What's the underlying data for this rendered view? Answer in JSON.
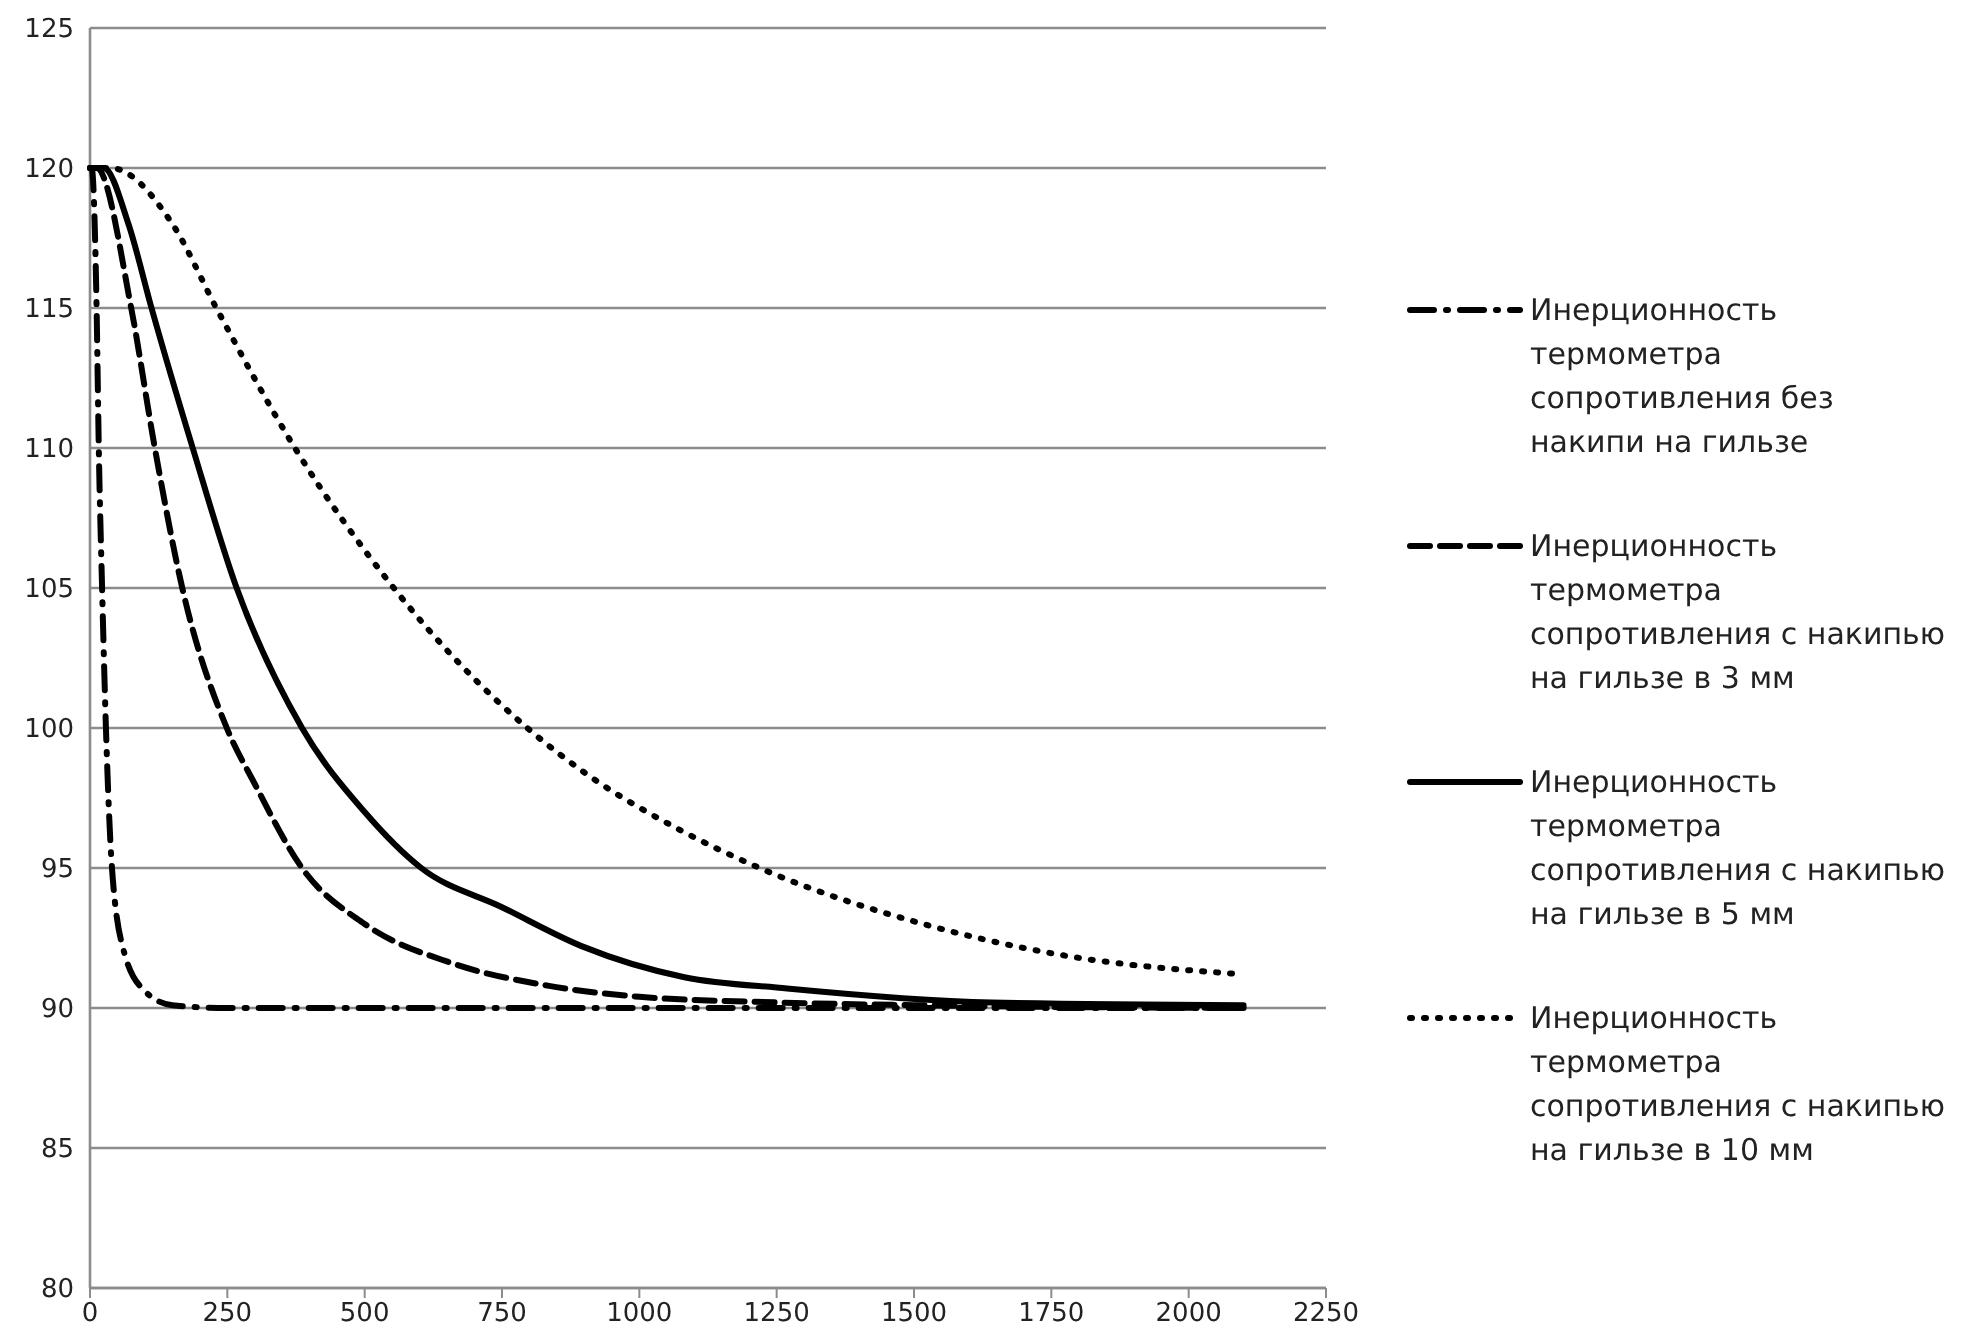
{
  "chart_data": {
    "type": "line",
    "xlim": [
      0,
      2250
    ],
    "xticks": [
      0,
      250,
      500,
      750,
      1000,
      1250,
      1500,
      1750,
      2000,
      2250
    ],
    "ylim": [
      80,
      125
    ],
    "yticks": [
      80,
      85,
      90,
      95,
      100,
      105,
      110,
      115,
      120,
      125
    ],
    "grid": "y",
    "legend": "right",
    "series": [
      {
        "name": "Инерционность термометра сопротивления без накипи на гильзе",
        "color": "#000000",
        "line_style": "dashdot",
        "x": [
          0,
          3,
          12,
          16,
          22,
          29,
          40,
          62,
          100,
          150,
          250,
          500,
          1000,
          1500,
          2100
        ],
        "values": [
          120,
          120,
          115,
          110,
          105,
          100,
          95,
          92,
          90.6,
          90.1,
          90,
          90,
          90,
          90,
          90
        ]
      },
      {
        "name": "Инерционность термометра сопротивления с накипью на гильзе в 3 мм",
        "color": "#000000",
        "line_style": "dashed",
        "x": [
          0,
          12,
          75,
          118,
          168,
          249,
          300,
          386,
          500,
          659,
          833,
          1000,
          1250,
          1500,
          2100
        ],
        "values": [
          120,
          120,
          115,
          110,
          105,
          100,
          98,
          95,
          93,
          91.6,
          90.8,
          90.4,
          90.2,
          90.1,
          90
        ]
      },
      {
        "name": "Инерционность термометра сопротивления с накипью на гильзе в 5 мм",
        "color": "#000000",
        "line_style": "solid",
        "x": [
          0,
          25,
          70,
          112,
          187,
          267,
          386,
          500,
          603,
          750,
          896,
          1082,
          1269,
          1642,
          2100
        ],
        "values": [
          120,
          120,
          118,
          115,
          110,
          105,
          100,
          97,
          95,
          93.6,
          92.2,
          91.1,
          90.7,
          90.2,
          90.1
        ]
      },
      {
        "name": "Инерционность термометра сопротивления с накипью на гильзе в 10 мм",
        "color": "#000000",
        "line_style": "dotted",
        "x": [
          0,
          37,
          150,
          230,
          373,
          553,
          796,
          908,
          1070,
          1219,
          1517,
          1766,
          2100
        ],
        "values": [
          120,
          120,
          118,
          115,
          110,
          105,
          100,
          98.3,
          96.4,
          95,
          93,
          91.9,
          91.2
        ]
      }
    ]
  }
}
